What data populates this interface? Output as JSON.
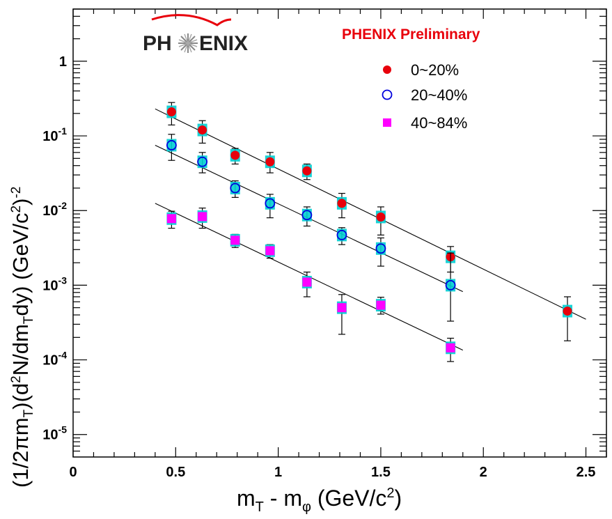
{
  "chart_data": {
    "type": "scatter",
    "title": "",
    "xlabel": {
      "main": "m",
      "sub1": "T",
      "mid": " - m",
      "sub2": "φ",
      "tail": " (GeV/c",
      "sup": "2",
      "end": ")"
    },
    "ylabel": {
      "a": "(1/2πm",
      "a_sub": "T",
      "b": ")(d",
      "b_sup": "2",
      "c": "N/dm",
      "c_sub": "T",
      "d": "dy)  (GeV/c",
      "d_sup": "2",
      "e": ")",
      "e_sup": "-2"
    },
    "xlim": [
      0,
      2.6
    ],
    "ylim": [
      5e-06,
      5
    ],
    "yscale": "log",
    "x_ticks": [
      {
        "value": 0,
        "label": "0"
      },
      {
        "value": 0.5,
        "label": "0.5"
      },
      {
        "value": 1,
        "label": "1"
      },
      {
        "value": 1.5,
        "label": "1.5"
      },
      {
        "value": 2,
        "label": "2"
      },
      {
        "value": 2.5,
        "label": "2.5"
      }
    ],
    "y_ticks": [
      {
        "value": 1,
        "base": "1",
        "exp": ""
      },
      {
        "value": 0.1,
        "base": "10",
        "exp": "-1"
      },
      {
        "value": 0.01,
        "base": "10",
        "exp": "-2"
      },
      {
        "value": 0.001,
        "base": "10",
        "exp": "-3"
      },
      {
        "value": 0.0001,
        "base": "10",
        "exp": "-4"
      },
      {
        "value": 1e-05,
        "base": "10",
        "exp": "-5"
      }
    ],
    "series": [
      {
        "name": "0~20%",
        "marker": "filled-circle",
        "color": "#e8000b",
        "x": [
          0.48,
          0.63,
          0.79,
          0.96,
          1.14,
          1.31,
          1.5,
          1.84,
          2.41
        ],
        "y": [
          0.21,
          0.12,
          0.055,
          0.045,
          0.034,
          0.0125,
          0.0082,
          0.0024,
          0.00045
        ],
        "y_err_lo": [
          0.07,
          0.04,
          0.013,
          0.013,
          0.008,
          0.0045,
          0.0035,
          0.0009,
          0.00027
        ],
        "y_err_hi": [
          0.07,
          0.04,
          0.013,
          0.015,
          0.008,
          0.0045,
          0.003,
          0.0009,
          0.00025
        ],
        "fit": {
          "x": [
            0.4,
            2.5
          ],
          "y": [
            0.23,
            0.00035
          ]
        }
      },
      {
        "name": "20~40%",
        "marker": "open-circle",
        "color": "#0000dd",
        "x": [
          0.48,
          0.63,
          0.79,
          0.96,
          1.14,
          1.31,
          1.5,
          1.84
        ],
        "y": [
          0.075,
          0.045,
          0.02,
          0.0125,
          0.0087,
          0.0047,
          0.0031,
          0.001
        ],
        "y_err_lo": [
          0.028,
          0.013,
          0.005,
          0.0045,
          0.0025,
          0.0012,
          0.0013,
          0.00067
        ],
        "y_err_hi": [
          0.03,
          0.015,
          0.005,
          0.004,
          0.0025,
          0.0012,
          0.0012,
          0.0017
        ],
        "fit": {
          "x": [
            0.4,
            1.9
          ],
          "y": [
            0.075,
            0.00082
          ]
        }
      },
      {
        "name": "40~84%",
        "marker": "filled-square",
        "color": "#ff00ff",
        "x": [
          0.48,
          0.63,
          0.79,
          0.96,
          1.14,
          1.31,
          1.5,
          1.84
        ],
        "y": [
          0.0078,
          0.0083,
          0.004,
          0.0029,
          0.0011,
          0.0005,
          0.00054,
          0.000145
        ],
        "y_err_lo": [
          0.002,
          0.0025,
          0.0008,
          0.0006,
          0.0004,
          0.00028,
          0.00013,
          5e-05
        ],
        "y_err_hi": [
          0.002,
          0.0025,
          0.0008,
          0.0006,
          0.0004,
          0.00025,
          0.00015,
          5e-05
        ],
        "fit": {
          "x": [
            0.4,
            1.9
          ],
          "y": [
            0.0125,
            0.000135
          ]
        }
      }
    ],
    "legend": {
      "position": "top-right"
    },
    "annotation": "PHENIX Preliminary",
    "logo_text": {
      "left": "PH",
      "right": "ENIX"
    },
    "colors": {
      "error_box": "#00ced1",
      "fit_line": "#000000",
      "axis": "#000000"
    }
  }
}
